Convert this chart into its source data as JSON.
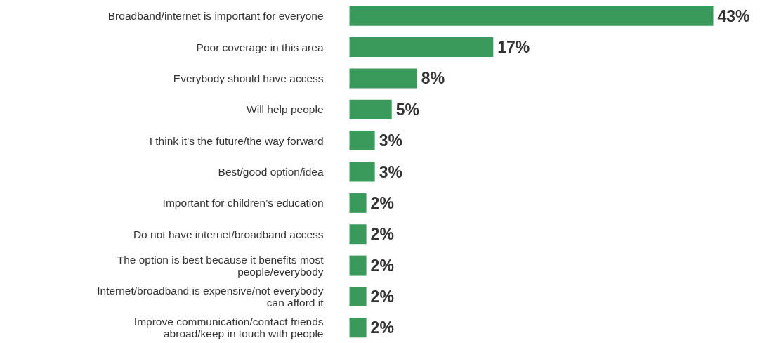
{
  "chart_data": {
    "type": "bar",
    "orientation": "horizontal",
    "categories": [
      "Broadband/internet is important for everyone",
      "Poor coverage in this area",
      "Everybody should have access",
      "Will help people",
      "I think it’s the future/the way forward",
      "Best/good option/idea",
      "Important for children’s education",
      "Do not have internet/broadband access",
      "The option is best because it benefits most\npeople/everybody",
      "Internet/broadband is expensive/not everybody\ncan afford it",
      "Improve communication/contact friends\nabroad/keep in touch with people"
    ],
    "values": [
      43,
      17,
      8,
      5,
      3,
      3,
      2,
      2,
      2,
      2,
      2
    ],
    "value_labels": [
      "43%",
      "17%",
      "8%",
      "5%",
      "3%",
      "3%",
      "2%",
      "2%",
      "2%",
      "2%",
      "2%"
    ],
    "color": "#3a9a5b",
    "grid": false
  }
}
